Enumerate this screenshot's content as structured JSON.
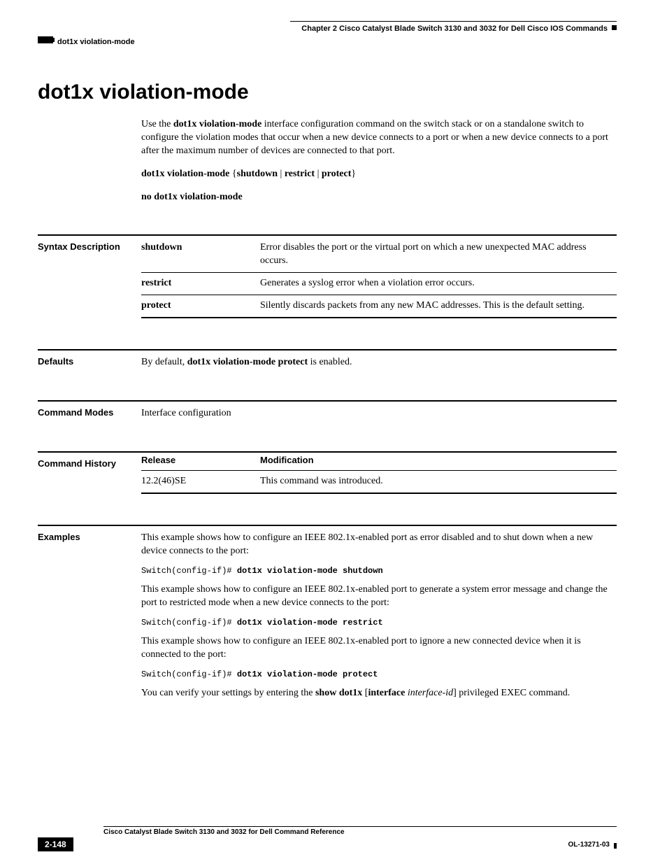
{
  "header": {
    "chapter": "Chapter 2    Cisco Catalyst Blade Switch 3130 and 3032 for Dell Cisco IOS Commands",
    "breadcrumb": "dot1x violation-mode"
  },
  "title": "dot1x violation-mode",
  "intro": {
    "p1_a": "Use the ",
    "p1_b": "dot1x violation-mode",
    "p1_c": " interface configuration command on the switch stack or on a standalone switch to configure the violation modes that occur when a new device connects to a port or when a new device connects to a port after the maximum number of devices are connected to that port.",
    "syntax1_a": "dot1x violation-mode ",
    "syntax1_b": "{",
    "syntax1_c": "shutdown",
    "syntax1_d": " | ",
    "syntax1_e": "restrict",
    "syntax1_f": " | ",
    "syntax1_g": "protect",
    "syntax1_h": "}",
    "syntax2": "no dot1x violation-mode"
  },
  "syntax_desc": {
    "label": "Syntax Description",
    "rows": [
      {
        "k": "shutdown",
        "v": "Error disables the port or the virtual port on which a new unexpected MAC address occurs."
      },
      {
        "k": "restrict",
        "v": "Generates a syslog error when a violation error occurs."
      },
      {
        "k": "protect",
        "v": "Silently discards packets from any new MAC addresses. This is the default setting."
      }
    ]
  },
  "defaults": {
    "label": "Defaults",
    "a": "By default, ",
    "b": "dot1x violation-mode protect",
    "c": " is enabled."
  },
  "modes": {
    "label": "Command Modes",
    "text": "Interface configuration"
  },
  "history": {
    "label": "Command History",
    "col1": "Release",
    "col2": "Modification",
    "release": "12.2(46)SE",
    "mod": "This command was introduced."
  },
  "examples": {
    "label": "Examples",
    "p1": "This example shows how to configure an IEEE 802.1x-enabled port as error disabled and to shut down when a new device connects to the port:",
    "c1_prompt": "Switch(config-if)# ",
    "c1_cmd": "dot1x violation-mode shutdown",
    "p2": "This example shows how to configure an IEEE 802.1x-enabled port to generate a system error message and change the port to restricted mode when a new device connects to the port:",
    "c2_prompt": "Switch(config-if)# ",
    "c2_cmd": "dot1x violation-mode restrict",
    "p3": "This example shows how to configure an IEEE 802.1x-enabled port to ignore a new connected device when it is connected to the port:",
    "c3_prompt": "Switch(config-if)# ",
    "c3_cmd": "dot1x violation-mode protect",
    "p4_a": "You can verify your settings by entering the ",
    "p4_b": "show dot1x",
    "p4_c": " [",
    "p4_d": "interface ",
    "p4_e": "interface-id",
    "p4_f": "] privileged EXEC command."
  },
  "footer": {
    "doc_title": "Cisco Catalyst Blade Switch 3130 and 3032 for Dell Command Reference",
    "page": "2-148",
    "doc_id": "OL-13271-03"
  }
}
